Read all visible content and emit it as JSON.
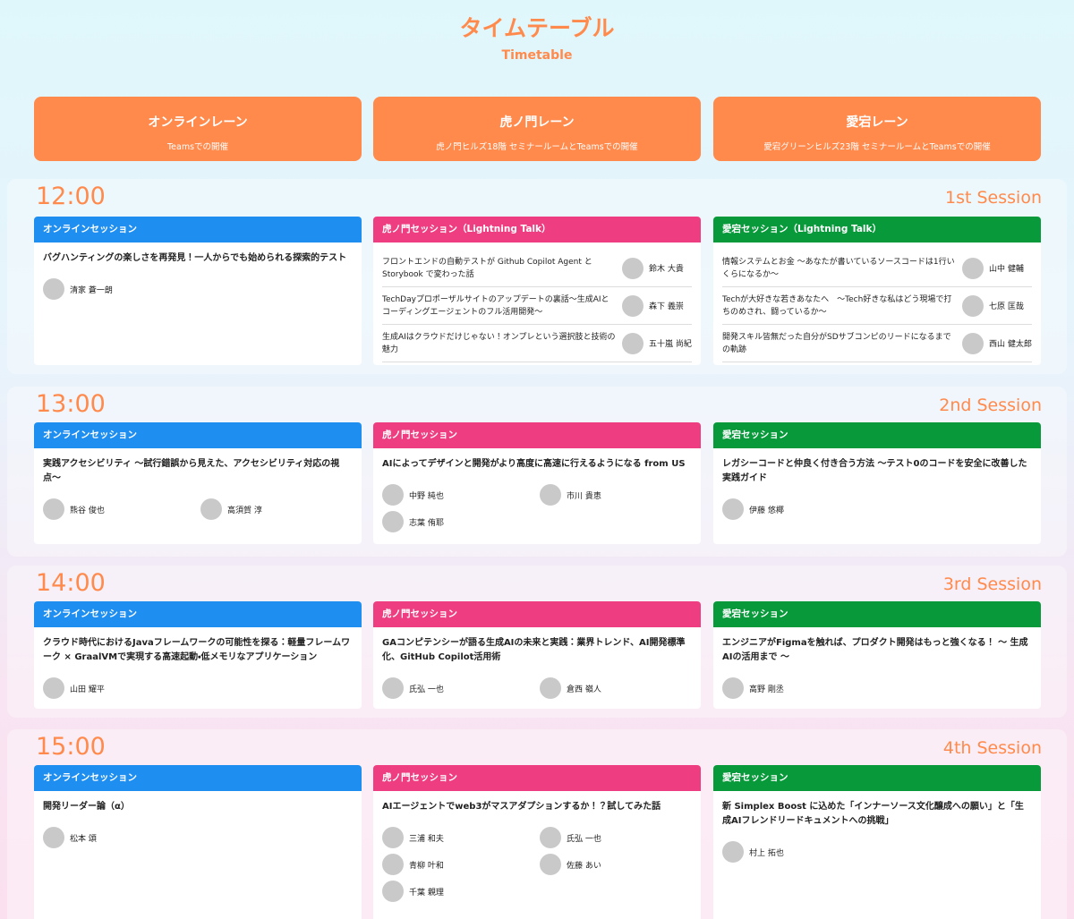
{
  "header": {
    "title": "タイムテーブル",
    "subtitle": "Timetable"
  },
  "lanes": [
    {
      "name": "オンラインレーン",
      "desc": "Teamsでの開催"
    },
    {
      "name": "虎ノ門レーン",
      "desc": "虎ノ門ヒルズ18階 セミナールームとTeamsでの開催"
    },
    {
      "name": "愛宕レーン",
      "desc": "愛宕グリーンヒルズ23階 セミナールームとTeamsでの開催"
    }
  ],
  "sessions": [
    {
      "time": "12:00",
      "label": "1st Session",
      "cards": [
        {
          "header": "オンラインセッション",
          "talks": [
            {
              "title": "バグハンティングの楽しさを再発見！一人からでも始められる探索的テスト",
              "speakers": [
                "清家 蒼一朗"
              ]
            }
          ]
        },
        {
          "header": "虎ノ門セッション（Lightning Talk）",
          "talks": [
            {
              "title": "フロントエンドの自動テストが Github Copilot Agent と Storybook で変わった話",
              "speakers": [
                "鈴木 大貴"
              ]
            },
            {
              "title": "TechDayプロポーザルサイトのアップデートの裏話〜生成AIとコーディングエージェントのフル活用開発〜",
              "speakers": [
                "森下 義崇"
              ]
            },
            {
              "title": "生成AIはクラウドだけじゃない！オンプレという選択肢と技術の魅力",
              "speakers": [
                "五十嵐 尚紀"
              ]
            }
          ]
        },
        {
          "header": "愛宕セッション（Lightning Talk）",
          "talks": [
            {
              "title": "情報システムとお金 〜あなたが書いているソースコードは1行いくらになるか〜",
              "speakers": [
                "山中 健輔"
              ]
            },
            {
              "title": "Techが大好きな若きあなたへ　〜Tech好きな私はどう現場で打ちのめされ、闘っているか〜",
              "speakers": [
                "七原 匡哉"
              ]
            },
            {
              "title": "開発スキル皆無だった自分がSDサブコンピのリードになるまでの軌跡",
              "speakers": [
                "西山 健太郎"
              ]
            }
          ]
        }
      ]
    },
    {
      "time": "13:00",
      "label": "2nd Session",
      "cards": [
        {
          "header": "オンラインセッション",
          "talks": [
            {
              "title": "実践アクセシビリティ 〜試行錯誤から見えた、アクセシビリティ対応の視点〜",
              "speakers": [
                "熊谷 俊也",
                "高須賀 淳"
              ]
            }
          ]
        },
        {
          "header": "虎ノ門セッション",
          "talks": [
            {
              "title": "AIによってデザインと開発がより高度に高速に行えるようになる from US",
              "speakers": [
                "中野 純也",
                "市川 貴恵",
                "志葉 侑耶"
              ]
            }
          ]
        },
        {
          "header": "愛宕セッション",
          "talks": [
            {
              "title": "レガシーコードと仲良く付き合う方法 〜テスト0のコードを安全に改善した実践ガイド",
              "speakers": [
                "伊藤 悠椰"
              ]
            }
          ]
        }
      ]
    },
    {
      "time": "14:00",
      "label": "3rd Session",
      "cards": [
        {
          "header": "オンラインセッション",
          "talks": [
            {
              "title": "クラウド時代におけるJavaフレームワークの可能性を探る：軽量フレームワーク × GraalVMで実現する高速起動・低メモリなアプリケーション",
              "speakers": [
                "山田 耀平"
              ]
            }
          ]
        },
        {
          "header": "虎ノ門セッション",
          "talks": [
            {
              "title": "GAコンピテンシーが語る生成AIの未来と実践：業界トレンド、AI開発標準化、GitHub Copilot活用術",
              "speakers": [
                "氏弘 一也",
                "倉西 嶺人"
              ]
            }
          ]
        },
        {
          "header": "愛宕セッション",
          "talks": [
            {
              "title": "エンジニアがFigmaを触れば、プロダクト開発はもっと強くなる！ 〜 生成AIの活用まで 〜",
              "speakers": [
                "高野 剛丞"
              ]
            }
          ]
        }
      ]
    },
    {
      "time": "15:00",
      "label": "4th Session",
      "cards": [
        {
          "header": "オンラインセッション",
          "talks": [
            {
              "title": "開発リーダー論（α）",
              "speakers": [
                "松本 頌"
              ]
            }
          ]
        },
        {
          "header": "虎ノ門セッション",
          "talks": [
            {
              "title": "AIエージェントでweb3がマスアダプションするか！？試してみた話",
              "speakers": [
                "三浦 和夫",
                "氏弘 一也",
                "青柳 叶和",
                "佐藤 あい",
                "千葉 親理"
              ]
            }
          ]
        },
        {
          "header": "愛宕セッション",
          "talks": [
            {
              "title": "新 Simplex Boost に込めた「インナーソース文化醸成への願い」と「生成AIフレンドリードキュメントへの挑戦」",
              "speakers": [
                "村上 拓也"
              ]
            }
          ]
        }
      ]
    }
  ]
}
